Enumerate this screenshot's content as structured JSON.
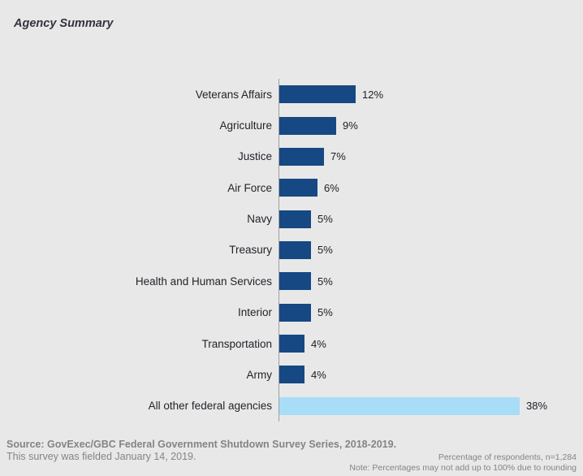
{
  "title": "Agency Summary",
  "chart_data": {
    "type": "bar",
    "orientation": "horizontal",
    "title": "Agency Summary",
    "categories": [
      "Veterans Affairs",
      "Agriculture",
      "Justice",
      "Air Force",
      "Navy",
      "Treasury",
      "Health and Human Services",
      "Interior",
      "Transportation",
      "Army",
      "All other federal agencies"
    ],
    "values": [
      12,
      9,
      7,
      6,
      5,
      5,
      5,
      5,
      4,
      4,
      38
    ],
    "unit": "%",
    "xlim": [
      0,
      40
    ],
    "grid": false,
    "legend": false,
    "bar_color": "#164883",
    "highlight_color": "#a8ddf8",
    "highlight_index": 10
  },
  "footer": {
    "source_line1": "Source: GovExec/GBC Federal Government Shutdown Survey Series, 2018-2019.",
    "source_line2": "This survey was fielded January 14, 2019.",
    "note_line1": "Percentage of respondents, n=1,284",
    "note_line2": "Note: Percentages may not add up to 100% due to rounding"
  }
}
